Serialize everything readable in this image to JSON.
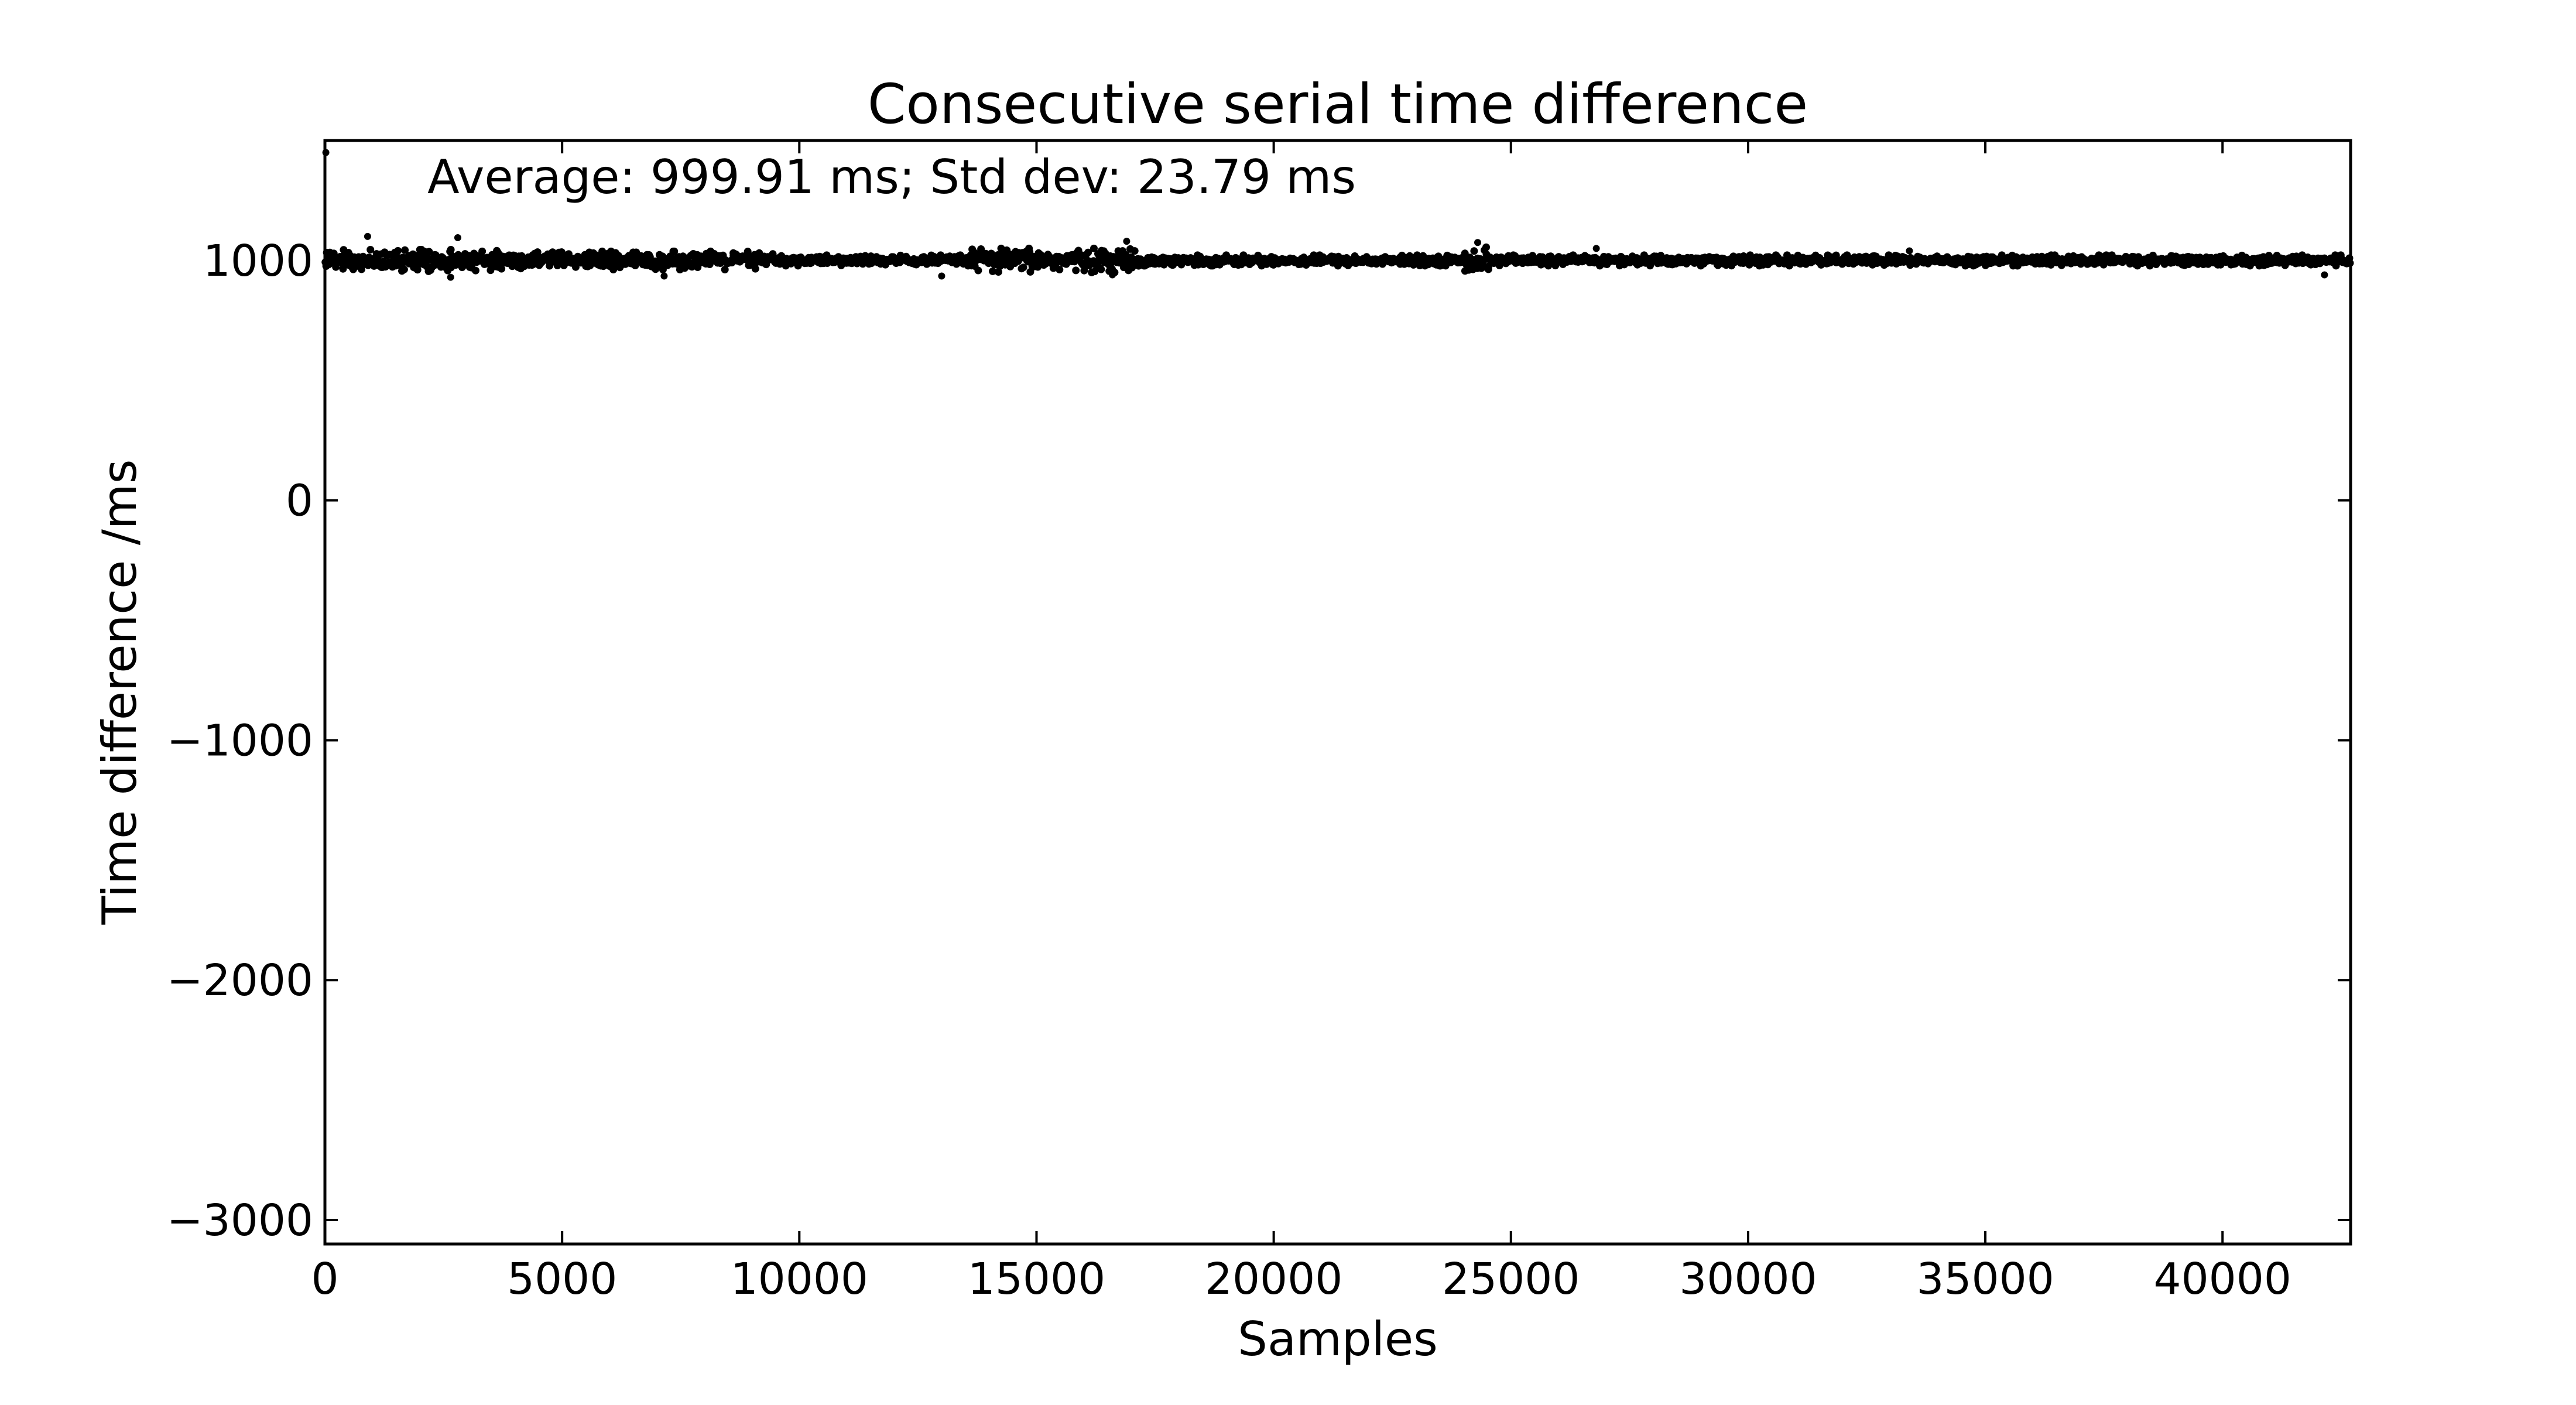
{
  "chart_data": {
    "type": "scatter",
    "title": "Consecutive serial time difference",
    "xlabel": "Samples",
    "ylabel": "Time difference /ms",
    "annotation": "Average: 999.91 ms;  Std dev: 23.79 ms",
    "xlim": [
      0,
      42700
    ],
    "ylim": [
      -3100,
      1500
    ],
    "xticks": [
      0,
      5000,
      10000,
      15000,
      20000,
      25000,
      30000,
      35000,
      40000
    ],
    "yticks": [
      -3000,
      -2000,
      -1000,
      0,
      1000
    ],
    "grid": false,
    "legend": "none",
    "marker_color": "#000000",
    "mean": 999.91,
    "std_dev": 23.79,
    "n_samples": 42700,
    "series": [
      {
        "values_summary": "band of points centred near 1000 ms across all samples",
        "outliers": [
          {
            "x": 20,
            "y": 1450
          },
          {
            "x": 900,
            "y": 1100
          },
          {
            "x": 2800,
            "y": 1095
          },
          {
            "x": 2650,
            "y": 930
          },
          {
            "x": 7150,
            "y": 935
          },
          {
            "x": 13000,
            "y": 935
          },
          {
            "x": 16600,
            "y": 940
          },
          {
            "x": 16900,
            "y": 1080
          },
          {
            "x": 24300,
            "y": 1075
          },
          {
            "x": 26800,
            "y": 1050
          },
          {
            "x": 33400,
            "y": 1040
          },
          {
            "x": 42150,
            "y": 940
          }
        ],
        "noisy_segments": [
          {
            "from": 0,
            "to": 4000,
            "spread": 45
          },
          {
            "from": 4000,
            "to": 9500,
            "spread": 38
          },
          {
            "from": 13600,
            "to": 17200,
            "spread": 50
          },
          {
            "from": 24000,
            "to": 24600,
            "spread": 55
          }
        ]
      }
    ]
  }
}
